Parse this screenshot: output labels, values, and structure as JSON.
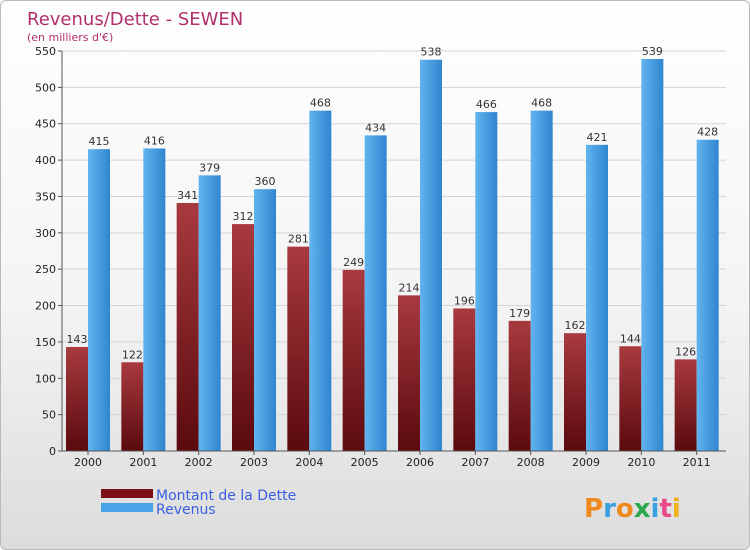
{
  "chart_data": {
    "type": "bar",
    "title": "Revenus/Dette - SEWEN",
    "subtitle": "(en milliers d'€)",
    "categories": [
      "2000",
      "2001",
      "2002",
      "2003",
      "2004",
      "2005",
      "2006",
      "2007",
      "2008",
      "2009",
      "2010",
      "2011"
    ],
    "series": [
      {
        "name": "Montant de la Dette",
        "color": "#8a1a22",
        "values": [
          143,
          122,
          341,
          312,
          281,
          249,
          214,
          196,
          179,
          162,
          144,
          126
        ]
      },
      {
        "name": "Revenus",
        "color": "#4aa3e6",
        "values": [
          415,
          416,
          379,
          360,
          468,
          434,
          538,
          466,
          468,
          421,
          539,
          428
        ]
      }
    ],
    "ylim": [
      0,
      550
    ],
    "yticks": [
      0,
      50,
      100,
      150,
      200,
      250,
      300,
      350,
      400,
      450,
      500,
      550
    ],
    "grid": true,
    "legend_position": "bottom-left"
  },
  "logo": {
    "letters": [
      "P",
      "r",
      "o",
      "x",
      "i",
      "t",
      "i"
    ],
    "colors": [
      "#f08a1c",
      "#3aa0e0",
      "#f08a1c",
      "#2aa84a",
      "#3aa0e0",
      "#e84a8a",
      "#f0b21c"
    ]
  }
}
